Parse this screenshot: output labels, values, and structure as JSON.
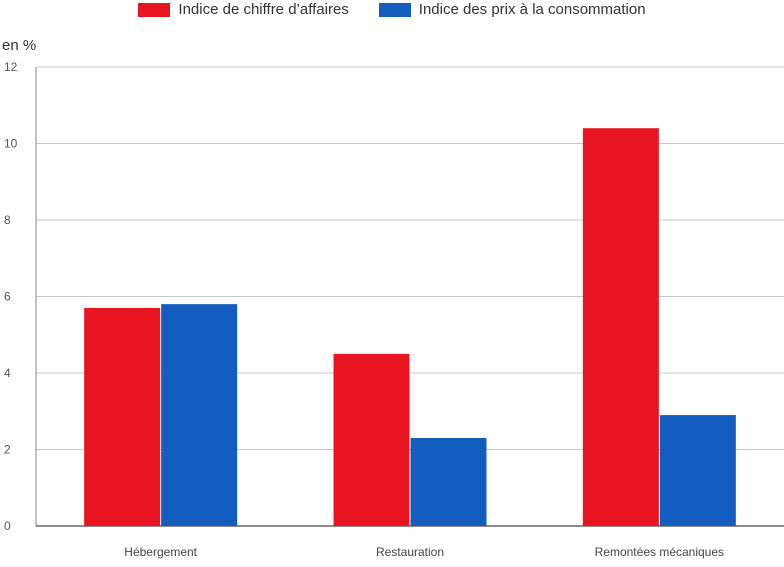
{
  "chart_data": {
    "type": "bar",
    "ylabel": "en %",
    "ylim": [
      0,
      12
    ],
    "yticks": [
      0,
      2,
      4,
      6,
      8,
      10,
      12
    ],
    "categories": [
      "Hébergement",
      "Restauration",
      "Remontées mécaniques"
    ],
    "series": [
      {
        "name": "Indice de chiffre d’affaires",
        "color": "#e8141f",
        "values": [
          5.7,
          4.5,
          10.4
        ]
      },
      {
        "name": "Indice des prix à la consommation",
        "color": "#125dbe",
        "values": [
          5.8,
          2.3,
          2.9
        ]
      }
    ],
    "grid": true,
    "legend_position": "top"
  }
}
